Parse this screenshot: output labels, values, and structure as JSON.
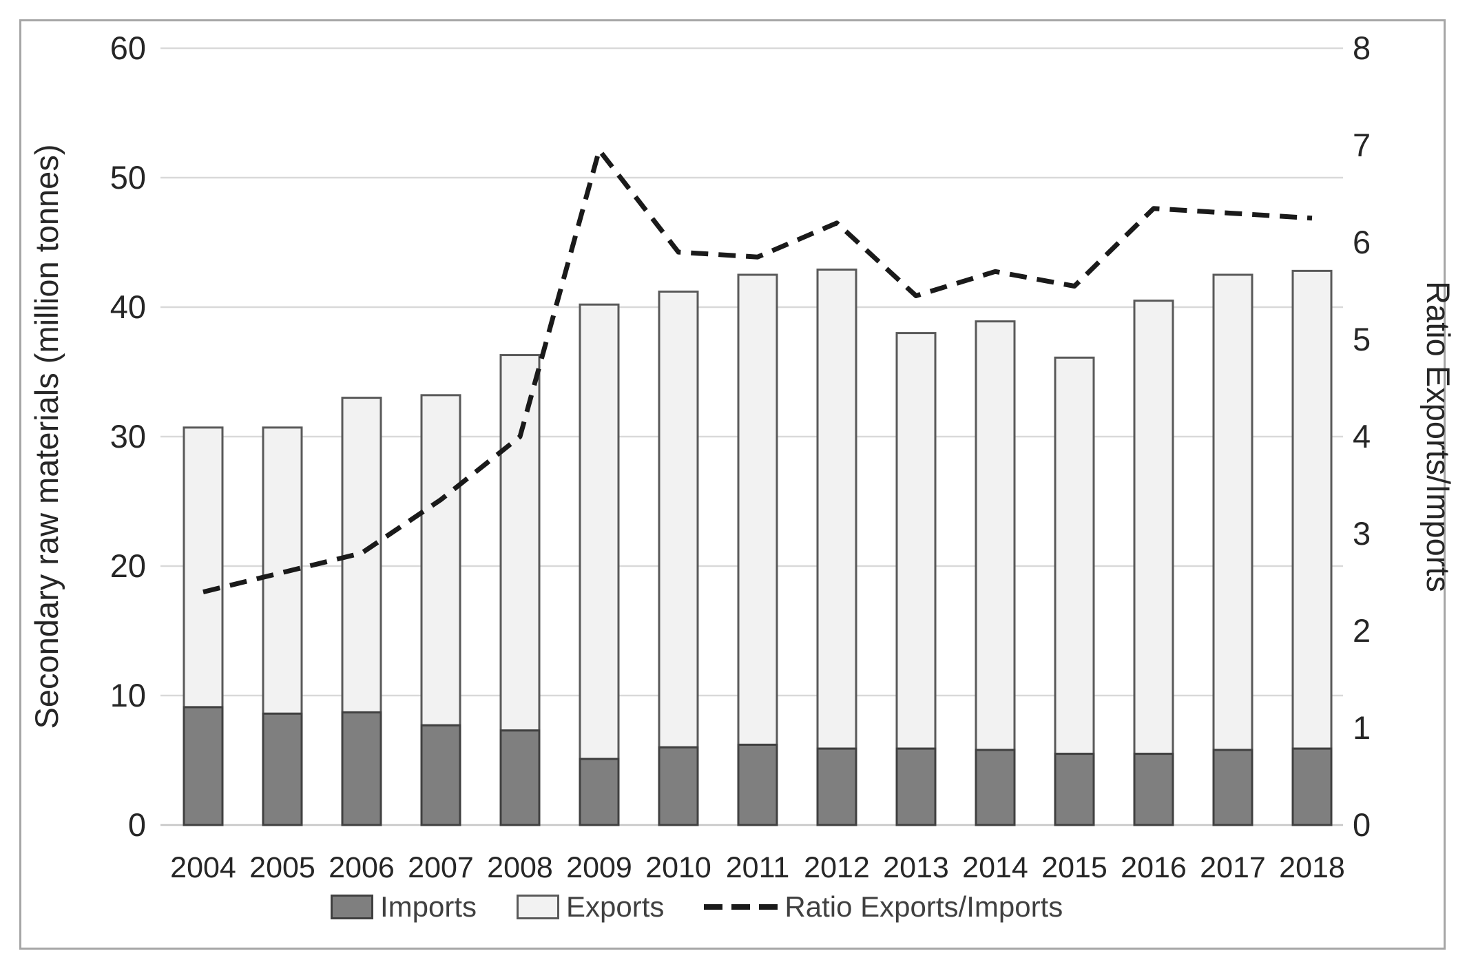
{
  "chart_data": {
    "type": "bar",
    "subtype": "stacked-bars-with-line-overlay",
    "categories": [
      "2004",
      "2005",
      "2006",
      "2007",
      "2008",
      "2009",
      "2010",
      "2011",
      "2012",
      "2013",
      "2014",
      "2015",
      "2016",
      "2017",
      "2018"
    ],
    "series": [
      {
        "name": "Imports",
        "type": "bar",
        "stacked": true,
        "axis": "left",
        "color": "#7f7f7f",
        "border_color": "#404040",
        "values": [
          9.1,
          8.6,
          8.7,
          7.7,
          7.3,
          5.1,
          6.0,
          6.2,
          5.9,
          5.9,
          5.8,
          5.5,
          5.5,
          5.8,
          5.9
        ]
      },
      {
        "name": "Exports",
        "type": "bar",
        "stacked": true,
        "axis": "left",
        "color": "#f2f2f2",
        "border_color": "#595959",
        "values": [
          21.6,
          22.1,
          24.3,
          25.5,
          29.0,
          35.1,
          35.2,
          36.3,
          37.0,
          32.1,
          33.1,
          30.6,
          35.0,
          36.7,
          36.9
        ]
      },
      {
        "name": "Ratio Exports/Imports",
        "type": "line",
        "style": "dashed",
        "axis": "right",
        "color": "#1a1a1a",
        "values": [
          2.4,
          2.6,
          2.8,
          3.35,
          4.0,
          6.95,
          5.9,
          5.85,
          6.2,
          5.45,
          5.7,
          5.55,
          6.35,
          6.3,
          6.25
        ]
      }
    ],
    "stacked_totals": [
      30.7,
      30.7,
      33.0,
      33.2,
      36.3,
      40.2,
      41.2,
      42.5,
      42.9,
      38.0,
      38.9,
      36.1,
      40.5,
      42.5,
      42.8
    ],
    "left_axis": {
      "label": "Secondary raw materials (million tonnes)",
      "min": 0,
      "max": 60,
      "tick_step": 10,
      "tick_labels": [
        "0",
        "10",
        "20",
        "30",
        "40",
        "50",
        "60"
      ]
    },
    "right_axis": {
      "label": "Ratio Exports/Imports",
      "min": 0,
      "max": 8,
      "tick_step": 1,
      "tick_labels": [
        "0",
        "1",
        "2",
        "3",
        "4",
        "5",
        "6",
        "7",
        "8"
      ]
    },
    "grid": "horizontal",
    "legend_position": "bottom",
    "title": "",
    "colors": {
      "gridline": "#d9d9d9",
      "baseline": "#c6c6c6",
      "tick_text": "#262626",
      "axis_title_text": "#262626",
      "legend_text": "#404040",
      "frame_border": "#a6a6a6",
      "background": "#ffffff"
    }
  }
}
